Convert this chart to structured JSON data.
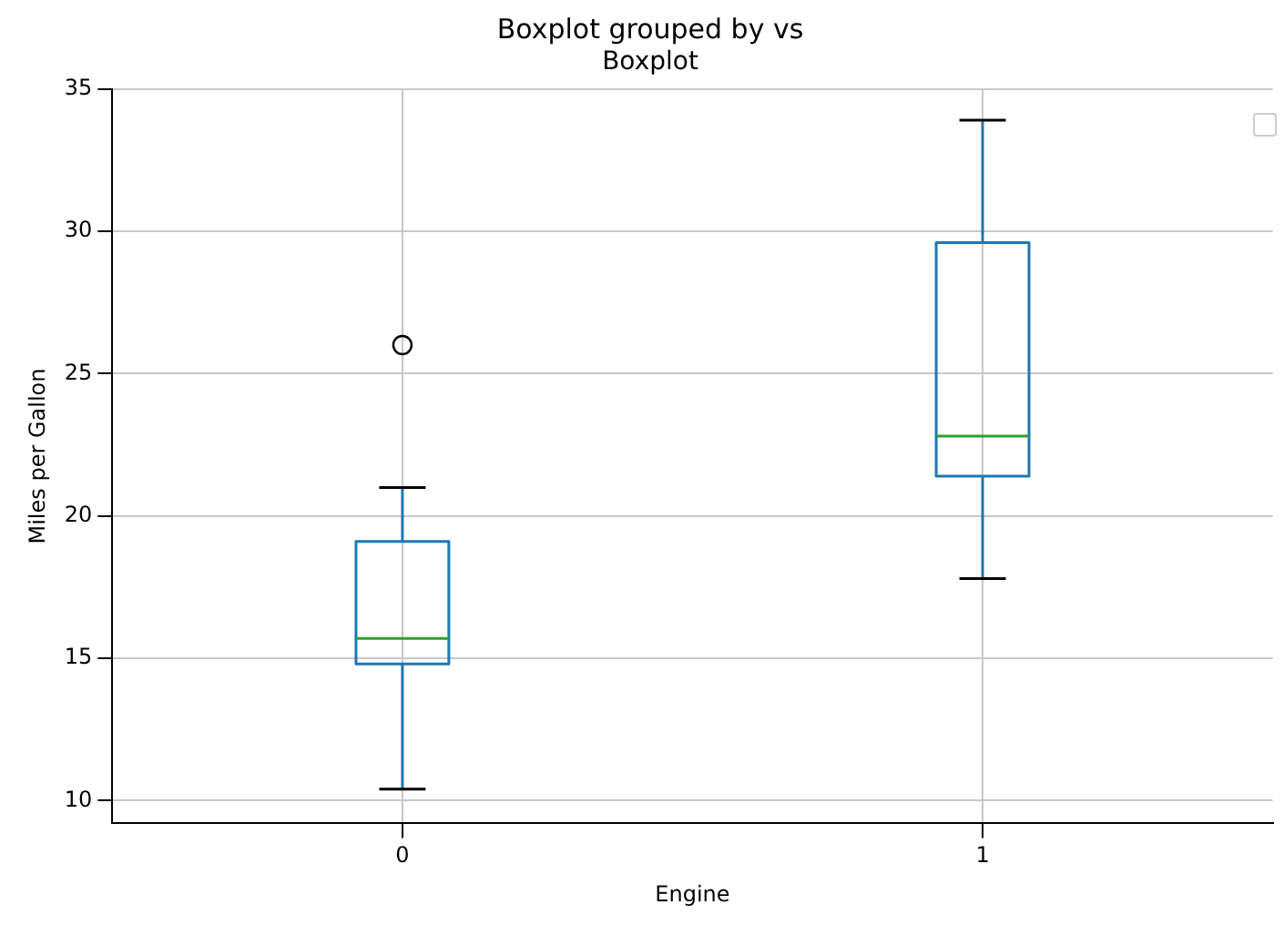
{
  "chart_data": {
    "type": "box",
    "title": "Boxplot grouped by vs",
    "subtitle": "Boxplot",
    "xlabel": "Engine",
    "ylabel": "Miles per Gallon",
    "categories": [
      "0",
      "1"
    ],
    "series": [
      {
        "color": "#1f77b4",
        "boxes": [
          {
            "low": 10.4,
            "q1": 14.8,
            "median": 15.7,
            "q3": 19.1,
            "high": 21.0,
            "outliers": [
              26.0
            ]
          },
          {
            "low": 17.8,
            "q1": 21.4,
            "median": 22.8,
            "q3": 29.6,
            "high": 33.9
          }
        ]
      }
    ],
    "ylim": [
      9.2,
      35
    ],
    "yticks": [
      10,
      15,
      20,
      25,
      30,
      35
    ],
    "grid": true
  }
}
